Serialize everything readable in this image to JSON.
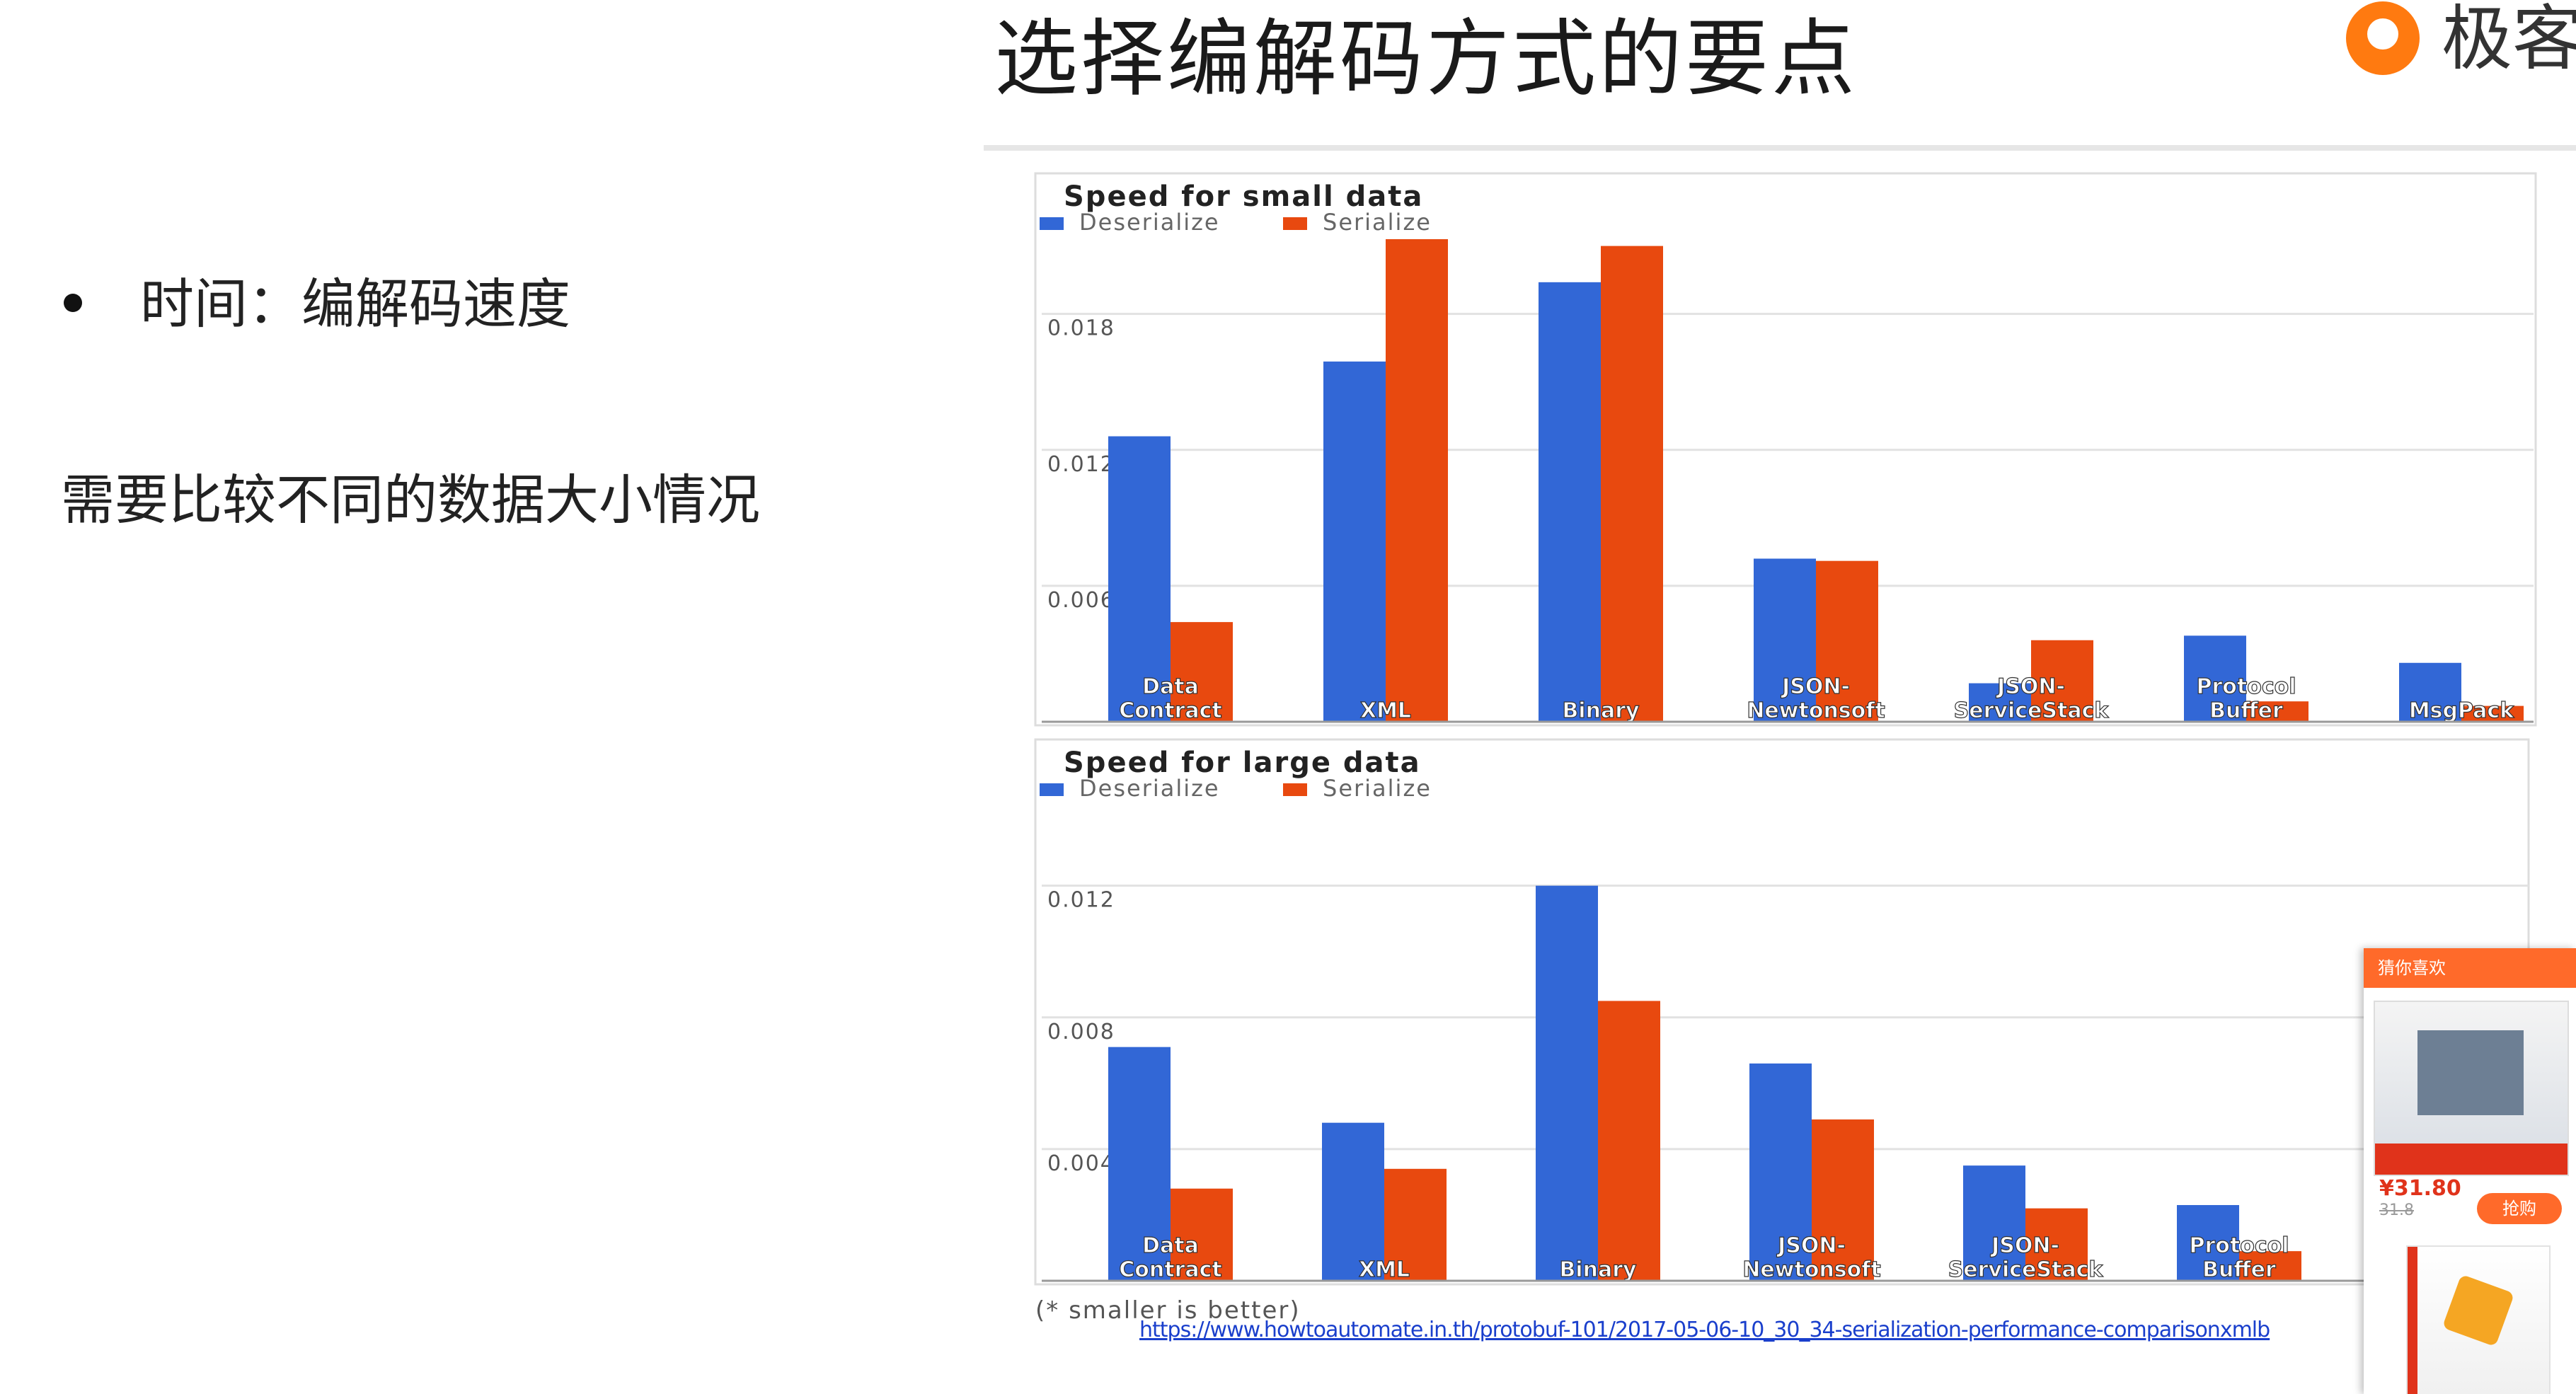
{
  "slide": {
    "title": "选择编解码方式的要点",
    "logo_text": "极客",
    "bullet": "时间：编解码速度",
    "note": "需要比较不同的数据大小情况"
  },
  "footnote": "(* smaller is better)",
  "source_url": "https://www.howtoautomate.in.th/protobuf-101/2017-05-06-10_30_34-serialization-performance-comparisonxmlb",
  "colors": {
    "deserialize": "#3267d6",
    "serialize": "#e8490f",
    "grid": "#e2e2e2"
  },
  "chart_data": [
    {
      "type": "bar",
      "title": "Speed for small data",
      "legend": [
        "Deserialize",
        "Serialize"
      ],
      "legend_position": "top-left",
      "grid": true,
      "ylim": [
        0,
        0.0213
      ],
      "yticks": [
        {
          "value": 0.006,
          "label": "0.006"
        },
        {
          "value": 0.012,
          "label": "0.012"
        },
        {
          "value": 0.018,
          "label": "0.018"
        }
      ],
      "categories": [
        [
          "Data",
          "Contract"
        ],
        [
          "XML"
        ],
        [
          "Binary"
        ],
        [
          "JSON-",
          "Newtonsoft"
        ],
        [
          "JSON-",
          "ServiceStack"
        ],
        [
          "Protocol",
          "Buffer"
        ],
        [
          "MsgPack"
        ]
      ],
      "series": [
        {
          "name": "Deserialize",
          "values": [
            0.0126,
            0.0159,
            0.0194,
            0.0072,
            0.0017,
            0.0038,
            0.0026
          ]
        },
        {
          "name": "Serialize",
          "values": [
            0.0044,
            0.0213,
            0.021,
            0.0071,
            0.0036,
            0.0009,
            0.0007
          ]
        }
      ]
    },
    {
      "type": "bar",
      "title": "Speed for large data",
      "legend": [
        "Deserialize",
        "Serialize"
      ],
      "legend_position": "top-left",
      "grid": true,
      "ylim": [
        0,
        0.0144
      ],
      "yticks": [
        {
          "value": 0.004,
          "label": "0.004"
        },
        {
          "value": 0.008,
          "label": "0.008"
        },
        {
          "value": 0.012,
          "label": "0.012"
        }
      ],
      "categories": [
        [
          "Data",
          "Contract"
        ],
        [
          "XML"
        ],
        [
          "Binary"
        ],
        [
          "JSON-",
          "Newtonsoft"
        ],
        [
          "JSON-",
          "ServiceStack"
        ],
        [
          "Protocol",
          "Buffer"
        ]
      ],
      "series": [
        {
          "name": "Deserialize",
          "values": [
            0.0071,
            0.0048,
            0.012,
            0.0066,
            0.0035,
            0.0023
          ]
        },
        {
          "name": "Serialize",
          "values": [
            0.0028,
            0.0034,
            0.0085,
            0.0049,
            0.0022,
            0.0009
          ]
        }
      ]
    }
  ],
  "promo": {
    "header": "猜你喜欢",
    "price": "¥31.80",
    "old_price": "31.8",
    "buy_label": "抢购"
  }
}
